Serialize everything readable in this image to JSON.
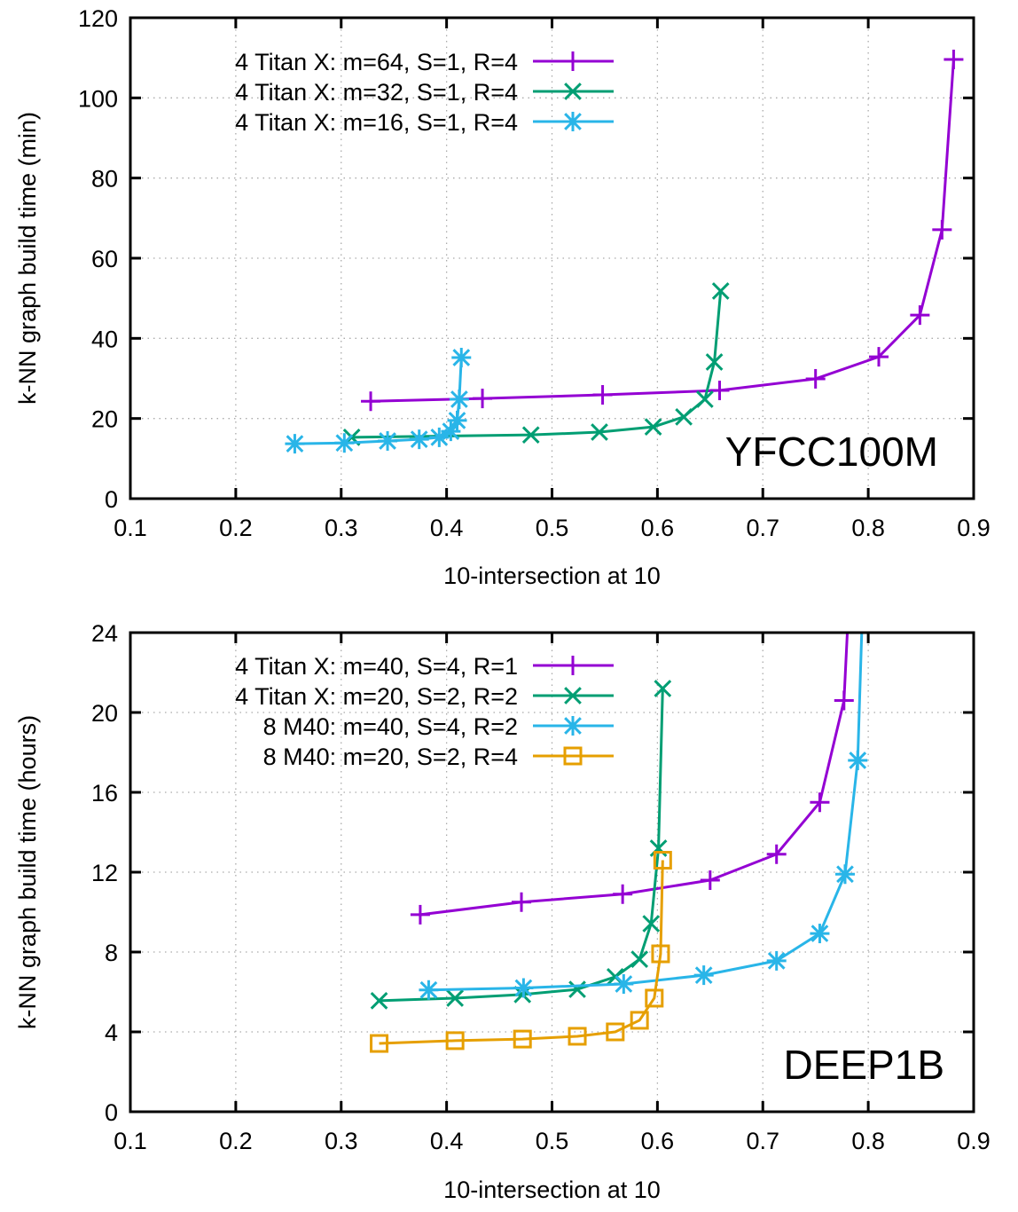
{
  "chart_data": [
    {
      "type": "line",
      "xlabel": "10-intersection at 10",
      "ylabel": "k-NN graph build time (min)",
      "annotation": "YFCC100M",
      "xlim": [
        0.1,
        0.9
      ],
      "ylim": [
        0,
        120
      ],
      "xticks": [
        "0.1",
        "0.2",
        "0.3",
        "0.4",
        "0.5",
        "0.6",
        "0.7",
        "0.8",
        "0.9"
      ],
      "yticks": [
        "0",
        "20",
        "40",
        "60",
        "80",
        "100",
        "120"
      ],
      "xtick_values": [
        0.1,
        0.2,
        0.3,
        0.4,
        0.5,
        0.6,
        0.7,
        0.8,
        0.9
      ],
      "ytick_values": [
        0,
        20,
        40,
        60,
        80,
        100,
        120
      ],
      "grid": true,
      "legend_position": "top-left",
      "series": [
        {
          "name": "4 Titan X: m=64, S=1, R=4",
          "color": "#9400d3",
          "marker": "plus",
          "x": [
            0.328,
            0.434,
            0.548,
            0.659,
            0.75,
            0.81,
            0.849,
            0.87,
            0.881
          ],
          "y": [
            24.3,
            25.0,
            25.9,
            27.0,
            29.9,
            35.4,
            45.8,
            67.1,
            109.6
          ]
        },
        {
          "name": "4 Titan X: m=32, S=1, R=4",
          "color": "#009e73",
          "marker": "cross",
          "x": [
            0.31,
            0.48,
            0.545,
            0.596,
            0.625,
            0.645,
            0.654,
            0.66
          ],
          "y": [
            15.3,
            15.9,
            16.6,
            17.9,
            20.4,
            24.8,
            34.1,
            51.8
          ]
        },
        {
          "name": "4 Titan X: m=16, S=1, R=4",
          "color": "#29b5e8",
          "marker": "star",
          "x": [
            0.256,
            0.303,
            0.344,
            0.374,
            0.393,
            0.404,
            0.41,
            0.412,
            0.414
          ],
          "y": [
            13.7,
            13.9,
            14.4,
            14.8,
            15.3,
            16.8,
            19.5,
            24.8,
            35.2
          ]
        }
      ]
    },
    {
      "type": "line",
      "xlabel": "10-intersection at 10",
      "ylabel": "k-NN graph build time (hours)",
      "annotation": "DEEP1B",
      "xlim": [
        0.1,
        0.9
      ],
      "ylim": [
        0,
        24
      ],
      "xticks": [
        "0.1",
        "0.2",
        "0.3",
        "0.4",
        "0.5",
        "0.6",
        "0.7",
        "0.8",
        "0.9"
      ],
      "yticks": [
        "0",
        "4",
        "8",
        "12",
        "16",
        "20",
        "24"
      ],
      "xtick_values": [
        0.1,
        0.2,
        0.3,
        0.4,
        0.5,
        0.6,
        0.7,
        0.8,
        0.9
      ],
      "ytick_values": [
        0,
        4,
        8,
        12,
        16,
        20,
        24
      ],
      "grid": true,
      "legend_position": "top-left",
      "series": [
        {
          "name": "4 Titan X: m=40, S=4, R=1",
          "color": "#9400d3",
          "marker": "plus",
          "x": [
            0.375,
            0.471,
            0.567,
            0.65,
            0.713,
            0.754,
            0.777
          ],
          "y": [
            9.87,
            10.5,
            10.9,
            11.6,
            12.9,
            15.5,
            20.6
          ],
          "continues_beyond": [
            0.782,
            26
          ]
        },
        {
          "name": "4 Titan X: m=20, S=2, R=2",
          "color": "#009e73",
          "marker": "cross",
          "x": [
            0.336,
            0.408,
            0.472,
            0.524,
            0.56,
            0.583,
            0.594,
            0.601,
            0.605
          ],
          "y": [
            5.56,
            5.69,
            5.87,
            6.13,
            6.76,
            7.64,
            9.42,
            13.2,
            21.2
          ]
        },
        {
          "name": "8 M40: m=40, S=4, R=2",
          "color": "#29b5e8",
          "marker": "star",
          "x": [
            0.383,
            0.473,
            0.568,
            0.644,
            0.713,
            0.754,
            0.778,
            0.79
          ],
          "y": [
            6.1,
            6.2,
            6.4,
            6.84,
            7.56,
            8.93,
            11.9,
            17.6
          ],
          "continues_beyond": [
            0.795,
            26
          ]
        },
        {
          "name": "8 M40: m=20, S=2, R=4",
          "color": "#e69f00",
          "marker": "square",
          "x": [
            0.336,
            0.408,
            0.472,
            0.524,
            0.56,
            0.583,
            0.597,
            0.603,
            0.605
          ],
          "y": [
            3.42,
            3.56,
            3.64,
            3.78,
            4.0,
            4.58,
            5.69,
            7.91,
            12.6
          ]
        }
      ]
    }
  ]
}
